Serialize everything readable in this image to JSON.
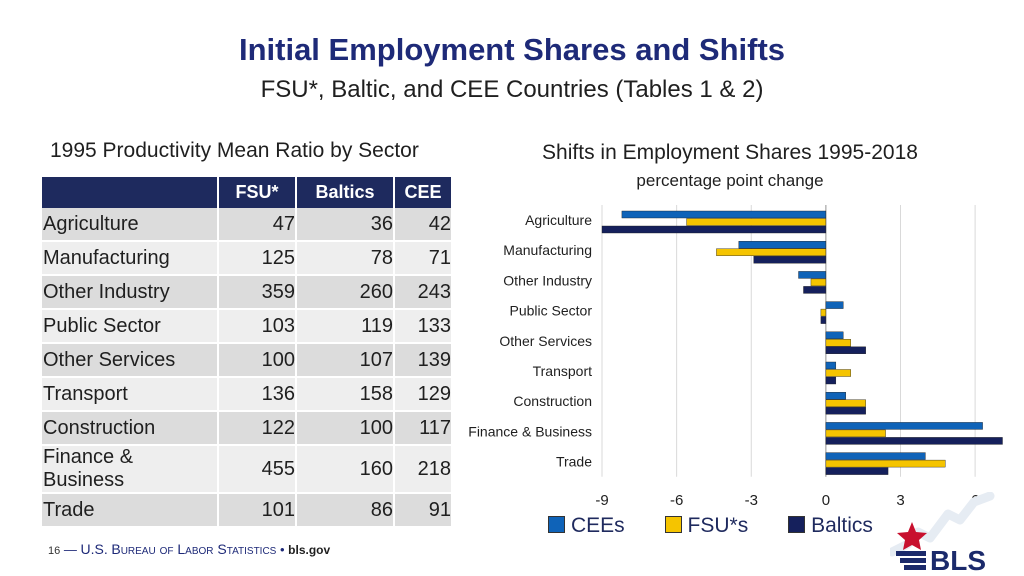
{
  "slide": {
    "title": "Initial Employment Shares and Shifts",
    "subtitle": "FSU*, Baltic, and CEE Countries (Tables 1 & 2)"
  },
  "table": {
    "title": "1995 Productivity Mean Ratio by Sector",
    "headers": [
      "FSU*",
      "Baltics",
      "CEE"
    ],
    "rows": [
      {
        "label": "Agriculture",
        "values": [
          "47",
          "36",
          "42"
        ]
      },
      {
        "label": "Manufacturing",
        "values": [
          "125",
          "78",
          "71"
        ]
      },
      {
        "label": "Other Industry",
        "values": [
          "359",
          "260",
          "243"
        ]
      },
      {
        "label": "Public Sector",
        "values": [
          "103",
          "119",
          "133"
        ]
      },
      {
        "label": "Other Services",
        "values": [
          "100",
          "107",
          "139"
        ]
      },
      {
        "label": "Transport",
        "values": [
          "136",
          "158",
          "129"
        ]
      },
      {
        "label": "Construction",
        "values": [
          "122",
          "100",
          "117"
        ]
      },
      {
        "label": "Finance & Business",
        "values": [
          "455",
          "160",
          "218"
        ]
      },
      {
        "label": "Trade",
        "values": [
          "101",
          "86",
          "91"
        ]
      }
    ]
  },
  "chart_data": {
    "type": "bar",
    "orientation": "horizontal",
    "title": "Shifts in Employment Shares 1995-2018",
    "subtitle": "percentage point change",
    "categories": [
      "Agriculture",
      "Manufacturing",
      "Other Industry",
      "Public Sector",
      "Other Services",
      "Transport",
      "Construction",
      "Finance & Business",
      "Trade"
    ],
    "series": [
      {
        "name": "CEEs",
        "color": "#0f63b8",
        "values": [
          -8.2,
          -3.5,
          -1.1,
          0.7,
          0.7,
          0.4,
          0.8,
          6.3,
          4.0
        ]
      },
      {
        "name": "FSU*s",
        "color": "#f5c400",
        "values": [
          -5.6,
          -4.4,
          -0.6,
          -0.2,
          1.0,
          1.0,
          1.6,
          2.4,
          4.8
        ]
      },
      {
        "name": "Baltics",
        "color": "#15205c",
        "values": [
          -9.0,
          -2.9,
          -0.9,
          -0.2,
          1.6,
          0.4,
          1.6,
          7.1,
          2.5
        ]
      }
    ],
    "xlim": [
      -9,
      7
    ],
    "xticks": [
      "-9",
      "-6",
      "-3",
      "0",
      "3",
      "6"
    ],
    "legend": "bottom"
  },
  "footer": {
    "page": "16",
    "dash": "—",
    "org_prefix": "U.S.",
    "org_name": "Bureau of Labor Statistics",
    "bullet": "•",
    "url": "bls.gov"
  },
  "logo": {
    "text": "BLS"
  },
  "colors": {
    "title": "#1e2a78",
    "header_fill": "#1e2a5e"
  }
}
